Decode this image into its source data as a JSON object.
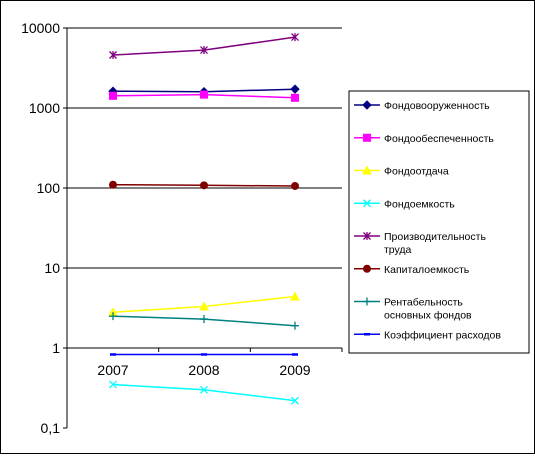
{
  "chart_data": {
    "type": "line",
    "y_scale": "log",
    "ylim": [
      0.1,
      10000
    ],
    "y_ticks": [
      "0,1",
      "1",
      "10",
      "100",
      "1000",
      "10000"
    ],
    "categories": [
      "2007",
      "2008",
      "2009"
    ],
    "grid": "horizontal major gridlines at each power of ten",
    "legend_position": "right",
    "series": [
      {
        "name": "Фондовооруженность",
        "values": [
          1620,
          1600,
          1720
        ],
        "color": "#000080",
        "marker": "diamond"
      },
      {
        "name": "Фондообеспеченность",
        "values": [
          1420,
          1470,
          1340
        ],
        "color": "#ff00ff",
        "marker": "square"
      },
      {
        "name": "Фондоотдача",
        "values": [
          2.8,
          3.3,
          4.4
        ],
        "color": "#ffff00",
        "marker": "triangle"
      },
      {
        "name": "Фондоемкость",
        "values": [
          0.35,
          0.3,
          0.22
        ],
        "color": "#00ffff",
        "marker": "x"
      },
      {
        "name": "Производительность труда",
        "values": [
          4600,
          5300,
          7700
        ],
        "color": "#800080",
        "marker": "star"
      },
      {
        "name": "Капиталоемкость",
        "values": [
          110,
          108,
          106
        ],
        "color": "#800000",
        "marker": "circle"
      },
      {
        "name": "Рентабельность основных фондов",
        "values": [
          2.5,
          2.3,
          1.9
        ],
        "color": "#008080",
        "marker": "plus"
      },
      {
        "name": "Коэффициент расходов",
        "values": [
          0.83,
          0.83,
          0.83
        ],
        "color": "#0000ff",
        "marker": "dash"
      }
    ]
  }
}
